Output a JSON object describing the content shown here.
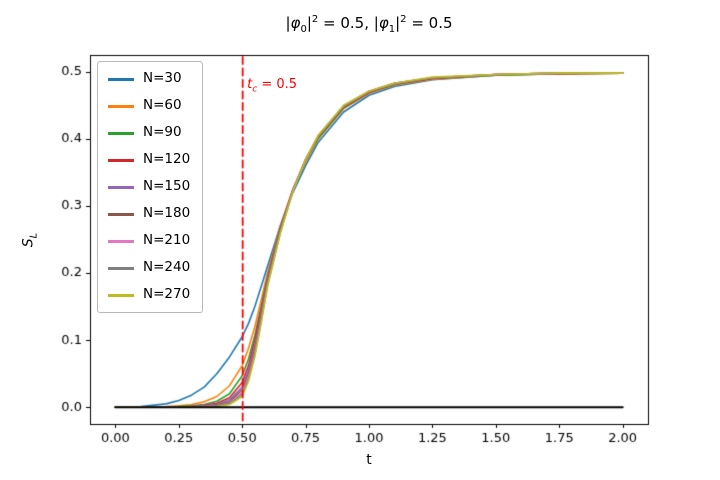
{
  "chart_data": {
    "type": "line",
    "title": "|φ0|² = 0.5, |φ1|² = 0.5",
    "title_parts": [
      {
        "text": "|"
      },
      {
        "text": "φ",
        "italic": true
      },
      {
        "text": "0",
        "sub": true
      },
      {
        "text": "|"
      },
      {
        "text": "2",
        "sup": true
      },
      {
        "text": " = 0.5, |"
      },
      {
        "text": "φ",
        "italic": true
      },
      {
        "text": "1",
        "sub": true
      },
      {
        "text": "|"
      },
      {
        "text": "2",
        "sup": true
      },
      {
        "text": " = 0.5"
      }
    ],
    "xlabel": "t",
    "ylabel": "S_L",
    "ylabel_parts": [
      {
        "text": "S",
        "italic": true
      },
      {
        "text": "L",
        "sub": true,
        "italic": true
      }
    ],
    "xlim": [
      0,
      2
    ],
    "ylim": [
      0,
      0.5
    ],
    "axes": {
      "x_view": [
        -0.1,
        2.1
      ],
      "y_view": [
        -0.025,
        0.525
      ],
      "xticks": {
        "values": [
          0,
          0.25,
          0.5,
          0.75,
          1.0,
          1.25,
          1.5,
          1.75,
          2.0
        ],
        "labels": [
          "0.00",
          "0.25",
          "0.50",
          "0.75",
          "1.00",
          "1.25",
          "1.50",
          "1.75",
          "2.00"
        ]
      },
      "yticks": {
        "values": [
          0,
          0.1,
          0.2,
          0.3,
          0.4,
          0.5
        ],
        "labels": [
          "0.0",
          "0.1",
          "0.2",
          "0.3",
          "0.4",
          "0.5"
        ]
      },
      "grid": false
    },
    "legend_position": "upper left",
    "x": [
      0,
      0.1,
      0.2,
      0.25,
      0.3,
      0.35,
      0.4,
      0.45,
      0.5,
      0.525,
      0.55,
      0.575,
      0.6,
      0.65,
      0.7,
      0.75,
      0.8,
      0.9,
      1.0,
      1.1,
      1.25,
      1.5,
      1.75,
      2.0
    ],
    "series": [
      {
        "name": "N=30",
        "color": "#1f77b4",
        "values": [
          0,
          0.001,
          0.005,
          0.01,
          0.018,
          0.03,
          0.05,
          0.075,
          0.105,
          0.125,
          0.15,
          0.18,
          0.21,
          0.27,
          0.32,
          0.36,
          0.395,
          0.44,
          0.465,
          0.478,
          0.488,
          0.495,
          0.497,
          0.498
        ]
      },
      {
        "name": "N=60",
        "color": "#ff7f0e",
        "values": [
          0,
          0,
          0.001,
          0.002,
          0.004,
          0.008,
          0.016,
          0.032,
          0.062,
          0.088,
          0.12,
          0.16,
          0.2,
          0.27,
          0.325,
          0.365,
          0.4,
          0.445,
          0.468,
          0.48,
          0.489,
          0.495,
          0.497,
          0.498
        ]
      },
      {
        "name": "N=90",
        "color": "#2ca02c",
        "values": [
          0,
          0,
          0,
          0.001,
          0.002,
          0.004,
          0.009,
          0.02,
          0.047,
          0.072,
          0.107,
          0.15,
          0.195,
          0.268,
          0.324,
          0.368,
          0.401,
          0.446,
          0.469,
          0.481,
          0.49,
          0.495,
          0.497,
          0.498
        ]
      },
      {
        "name": "N=120",
        "color": "#d62728",
        "values": [
          0,
          0,
          0,
          0,
          0.001,
          0.003,
          0.006,
          0.014,
          0.037,
          0.062,
          0.1,
          0.145,
          0.192,
          0.266,
          0.324,
          0.369,
          0.403,
          0.447,
          0.469,
          0.482,
          0.49,
          0.496,
          0.497,
          0.498
        ]
      },
      {
        "name": "N=150",
        "color": "#9467bd",
        "values": [
          0,
          0,
          0,
          0,
          0.001,
          0.002,
          0.004,
          0.011,
          0.03,
          0.055,
          0.092,
          0.14,
          0.19,
          0.265,
          0.324,
          0.369,
          0.404,
          0.448,
          0.47,
          0.482,
          0.491,
          0.496,
          0.498,
          0.498
        ]
      },
      {
        "name": "N=180",
        "color": "#8c564b",
        "values": [
          0,
          0,
          0,
          0,
          0,
          0.001,
          0.003,
          0.008,
          0.026,
          0.05,
          0.086,
          0.135,
          0.187,
          0.263,
          0.323,
          0.369,
          0.404,
          0.448,
          0.47,
          0.483,
          0.491,
          0.496,
          0.498,
          0.498
        ]
      },
      {
        "name": "N=210",
        "color": "#e377c2",
        "values": [
          0,
          0,
          0,
          0,
          0,
          0.001,
          0.002,
          0.006,
          0.022,
          0.046,
          0.082,
          0.131,
          0.184,
          0.261,
          0.323,
          0.369,
          0.405,
          0.449,
          0.471,
          0.483,
          0.491,
          0.496,
          0.498,
          0.498
        ]
      },
      {
        "name": "N=240",
        "color": "#7f7f7f",
        "values": [
          0,
          0,
          0,
          0,
          0,
          0,
          0.002,
          0.005,
          0.019,
          0.042,
          0.079,
          0.128,
          0.182,
          0.26,
          0.322,
          0.369,
          0.405,
          0.449,
          0.471,
          0.483,
          0.491,
          0.496,
          0.498,
          0.498
        ]
      },
      {
        "name": "N=270",
        "color": "#bcbd22",
        "values": [
          0,
          0,
          0,
          0,
          0,
          0,
          0.001,
          0.004,
          0.016,
          0.039,
          0.076,
          0.126,
          0.18,
          0.259,
          0.322,
          0.369,
          0.405,
          0.45,
          0.471,
          0.483,
          0.492,
          0.496,
          0.498,
          0.498
        ]
      }
    ],
    "baseline": {
      "y": 0,
      "x_start": 0.0,
      "x_end": 2.0,
      "color": "#000000",
      "width": 2.2
    },
    "vline": {
      "x": 0.5,
      "color": "#ff0000",
      "style": "dashed",
      "label": "t_c = 0.5",
      "label_parts": [
        {
          "text": "t",
          "italic": true
        },
        {
          "text": "c",
          "sub": true,
          "italic": true
        },
        {
          "text": " = 0.5"
        }
      ]
    }
  }
}
